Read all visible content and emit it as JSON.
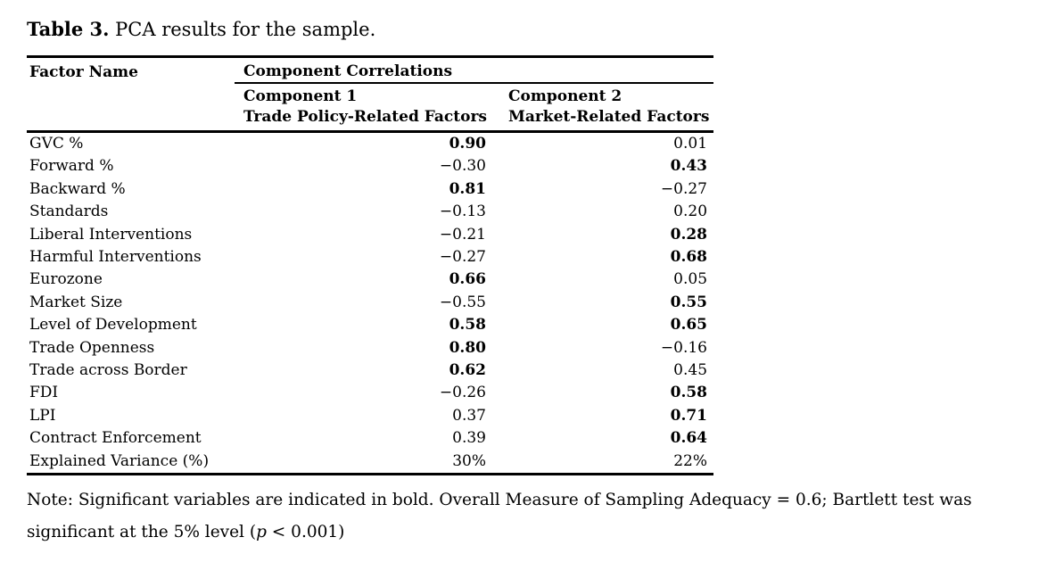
{
  "title": {
    "label": "Table 3.",
    "rest": "PCA results for the sample."
  },
  "table": {
    "header": {
      "factor_col": "Factor Name",
      "group_col": "Component Correlations",
      "component1_line1": "Component 1",
      "component1_line2": "Trade Policy-Related Factors",
      "component2_line1": "Component 2",
      "component2_line2": "Market-Related Factors"
    },
    "rows": [
      {
        "factor": "GVC %",
        "c1": "0.90",
        "c1_bold": true,
        "c2": "0.01",
        "c2_bold": false
      },
      {
        "factor": "Forward %",
        "c1": "−0.30",
        "c1_bold": false,
        "c2": "0.43",
        "c2_bold": true
      },
      {
        "factor": "Backward %",
        "c1": "0.81",
        "c1_bold": true,
        "c2": "−0.27",
        "c2_bold": false
      },
      {
        "factor": "Standards",
        "c1": "−0.13",
        "c1_bold": false,
        "c2": "0.20",
        "c2_bold": false
      },
      {
        "factor": "Liberal Interventions",
        "c1": "−0.21",
        "c1_bold": false,
        "c2": "0.28",
        "c2_bold": true
      },
      {
        "factor": "Harmful Interventions",
        "c1": "−0.27",
        "c1_bold": false,
        "c2": "0.68",
        "c2_bold": true
      },
      {
        "factor": "Eurozone",
        "c1": "0.66",
        "c1_bold": true,
        "c2": "0.05",
        "c2_bold": false
      },
      {
        "factor": "Market Size",
        "c1": "−0.55",
        "c1_bold": false,
        "c2": "0.55",
        "c2_bold": true
      },
      {
        "factor": "Level of Development",
        "c1": "0.58",
        "c1_bold": true,
        "c2": "0.65",
        "c2_bold": true
      },
      {
        "factor": "Trade Openness",
        "c1": "0.80",
        "c1_bold": true,
        "c2": "−0.16",
        "c2_bold": false
      },
      {
        "factor": "Trade across Border",
        "c1": "0.62",
        "c1_bold": true,
        "c2": "0.45",
        "c2_bold": false
      },
      {
        "factor": "FDI",
        "c1": "−0.26",
        "c1_bold": false,
        "c2": "0.58",
        "c2_bold": true
      },
      {
        "factor": "LPI",
        "c1": "0.37",
        "c1_bold": false,
        "c2": "0.71",
        "c2_bold": true
      },
      {
        "factor": "Contract Enforcement",
        "c1": "0.39",
        "c1_bold": false,
        "c2": "0.64",
        "c2_bold": true
      },
      {
        "factor": "Explained Variance (%)",
        "c1": "30%",
        "c1_bold": false,
        "c2": "22%",
        "c2_bold": false
      }
    ]
  },
  "note": {
    "line1": "Note: Significant variables are indicated in bold. Overall Measure of Sampling Adequacy = 0.6; Bartlett test was",
    "line2_prefix": "significant at the 5% level (",
    "p_symbol": "p",
    "line2_suffix": " < 0.001)"
  },
  "colors": {
    "text": "#000000",
    "background": "#ffffff",
    "rule": "#000000"
  }
}
